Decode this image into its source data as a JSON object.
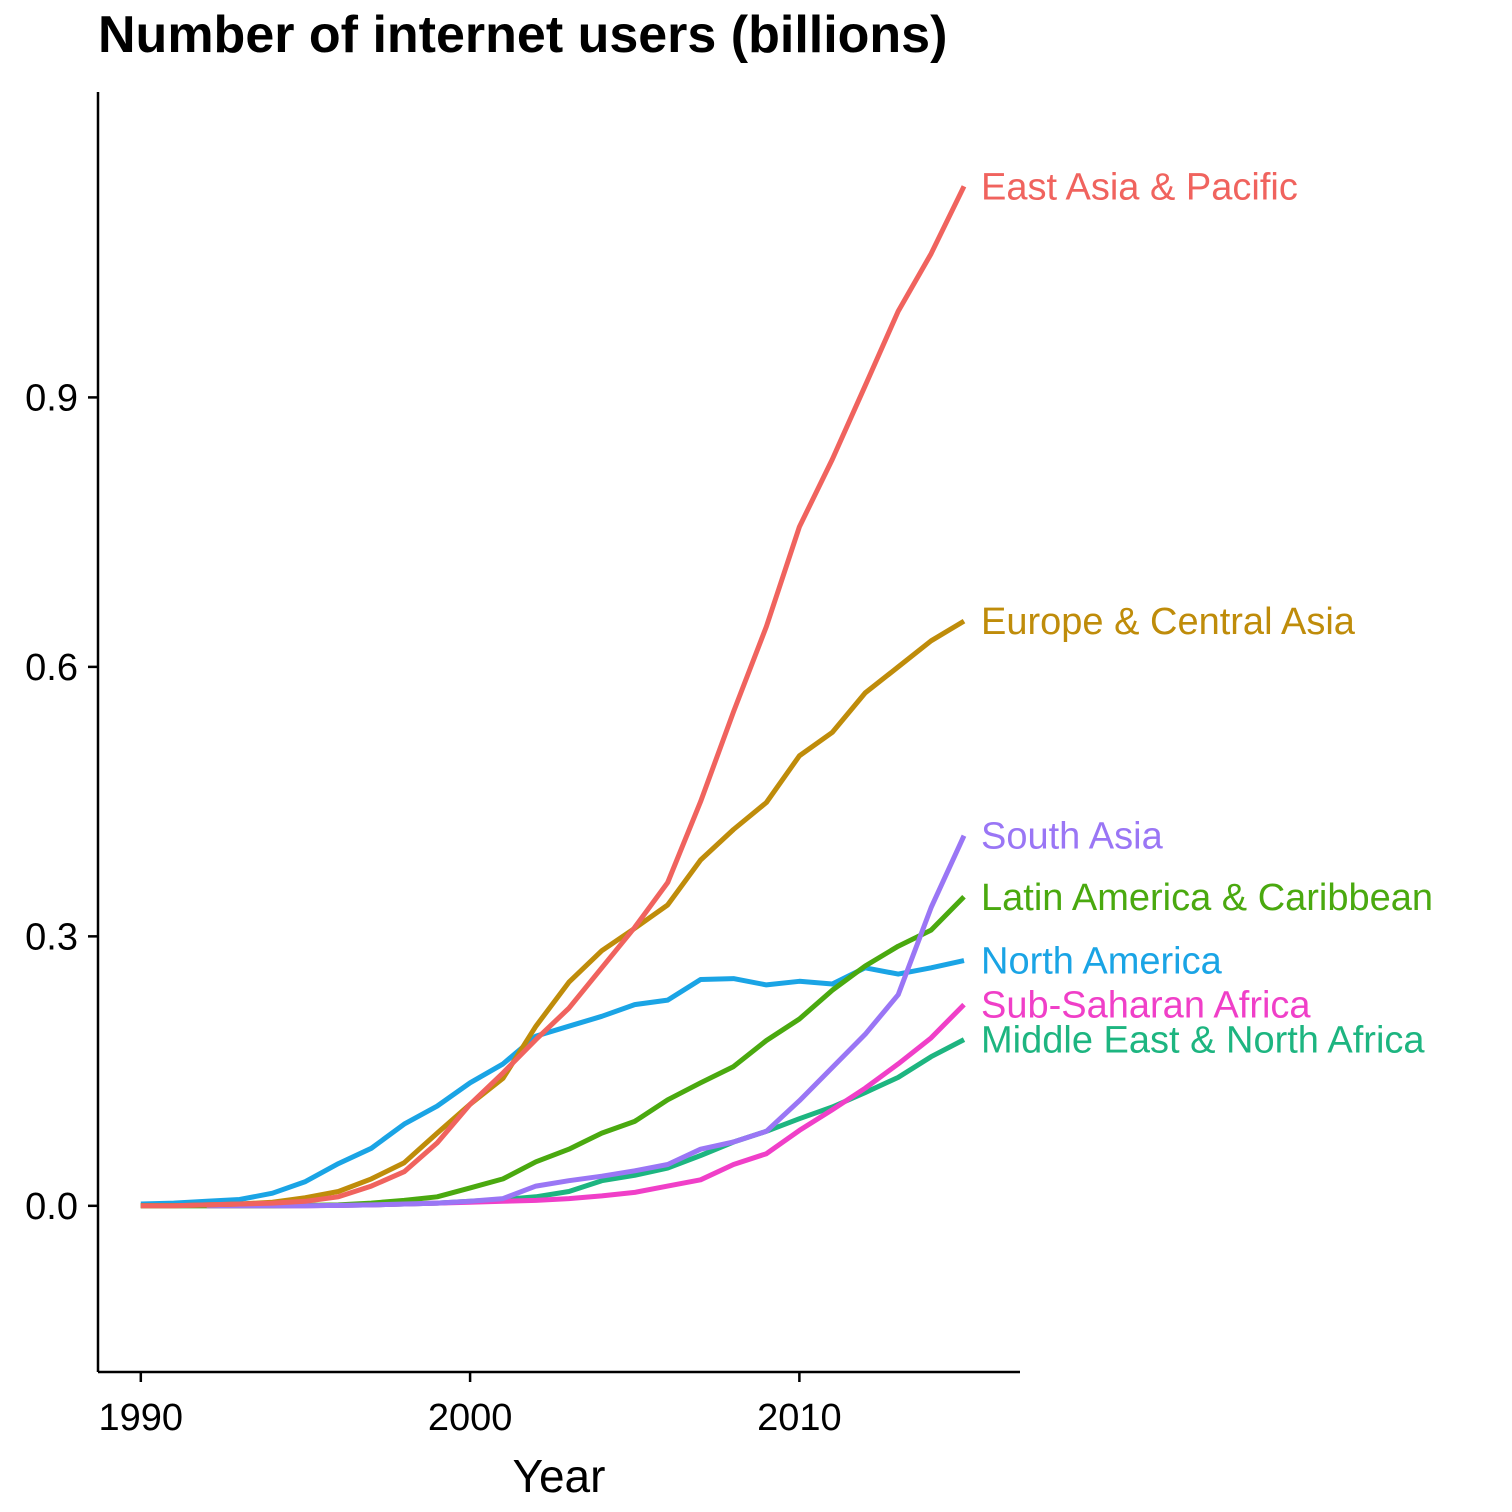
{
  "chart_data": {
    "type": "line",
    "title": "Number of internet users (billions)",
    "xlabel": "Year",
    "ylabel": "",
    "xlim": [
      1988.7,
      2016.7
    ],
    "ylim": [
      -0.185,
      1.24
    ],
    "x_ticks": [
      1990,
      2000,
      2010
    ],
    "x_tick_labels": [
      "1990",
      "2000",
      "2010"
    ],
    "y_ticks": [
      0.0,
      0.3,
      0.6,
      0.9
    ],
    "y_tick_labels": [
      "0.0",
      "0.3",
      "0.6",
      "0.9"
    ],
    "grid": false,
    "legend": "direct labels at line ends (right)",
    "x": [
      1990,
      1991,
      1992,
      1993,
      1994,
      1995,
      1996,
      1997,
      1998,
      1999,
      2000,
      2001,
      2002,
      2003,
      2004,
      2005,
      2006,
      2007,
      2008,
      2009,
      2010,
      2011,
      2012,
      2013,
      2014,
      2015
    ],
    "series": [
      {
        "name": "Middle East & North Africa",
        "label": "Middle East & North Africa",
        "color": "#1DB580",
        "values": [
          0,
          0,
          0,
          0,
          0,
          0.0002,
          0.0005,
          0.001,
          0.002,
          0.003,
          0.005,
          0.007,
          0.01,
          0.016,
          0.028,
          0.034,
          0.042,
          0.056,
          0.071,
          0.083,
          0.097,
          0.11,
          0.126,
          0.143,
          0.166,
          0.185
        ]
      },
      {
        "name": "Sub-Saharan Africa",
        "label": "Sub-Saharan Africa",
        "color": "#F03FC8",
        "values": [
          null,
          null,
          0,
          0,
          0,
          0,
          0.0005,
          0.001,
          0.002,
          0.003,
          0.004,
          0.005,
          0.006,
          0.008,
          0.011,
          0.015,
          0.022,
          0.029,
          0.046,
          0.058,
          0.084,
          0.107,
          0.131,
          0.158,
          0.187,
          0.224
        ]
      },
      {
        "name": "North America",
        "label": "North America",
        "color": "#1AA4E5",
        "values": [
          0.002,
          0.003,
          0.005,
          0.007,
          0.014,
          0.027,
          0.047,
          0.064,
          0.091,
          0.111,
          0.137,
          0.158,
          0.189,
          0.2,
          0.211,
          0.224,
          0.229,
          0.252,
          0.253,
          0.246,
          0.25,
          0.247,
          0.265,
          0.258,
          0.265,
          0.273
        ]
      },
      {
        "name": "Latin America & Caribbean",
        "label": "Latin America & Caribbean",
        "color": "#4AA90F",
        "values": [
          0,
          0,
          0,
          0,
          0,
          0.0005,
          0.001,
          0.003,
          0.006,
          0.01,
          0.02,
          0.03,
          0.049,
          0.063,
          0.081,
          0.094,
          0.118,
          0.137,
          0.155,
          0.184,
          0.208,
          0.24,
          0.267,
          0.289,
          0.307,
          0.344
        ]
      },
      {
        "name": "South Asia",
        "label": "South Asia",
        "color": "#9A76F5",
        "values": [
          null,
          null,
          0,
          0,
          0,
          0,
          0.0005,
          0.001,
          0.002,
          0.003,
          0.005,
          0.008,
          0.022,
          0.028,
          0.033,
          0.039,
          0.046,
          0.063,
          0.071,
          0.083,
          0.117,
          0.154,
          0.191,
          0.235,
          0.332,
          0.412
        ]
      },
      {
        "name": "Europe & Central Asia",
        "label": "Europe & Central Asia",
        "color": "#BF8C0A",
        "values": [
          0,
          0,
          0.001,
          0.002,
          0.004,
          0.009,
          0.016,
          0.03,
          0.048,
          0.081,
          0.113,
          0.142,
          0.2,
          0.249,
          0.284,
          0.309,
          0.335,
          0.385,
          0.419,
          0.449,
          0.501,
          0.527,
          0.571,
          0.6,
          0.629,
          0.651
        ]
      },
      {
        "name": "East Asia & Pacific",
        "label": "East Asia & Pacific",
        "color": "#F0635E",
        "values": [
          0,
          0,
          0.001,
          0.002,
          0.003,
          0.005,
          0.01,
          0.022,
          0.038,
          0.07,
          0.113,
          0.148,
          0.185,
          0.22,
          0.265,
          0.31,
          0.36,
          0.45,
          0.55,
          0.645,
          0.756,
          0.831,
          0.913,
          0.996,
          1.06,
          1.135
        ]
      }
    ]
  }
}
